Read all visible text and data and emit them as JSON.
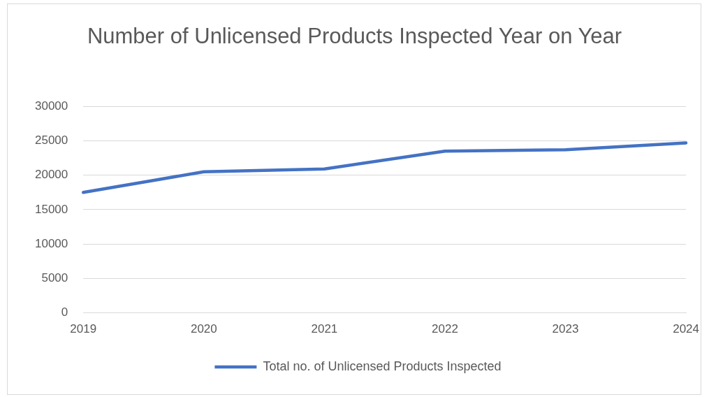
{
  "chart_data": {
    "type": "line",
    "title": "Number of Unlicensed Products Inspected Year on Year",
    "categories": [
      "2019",
      "2020",
      "2021",
      "2022",
      "2023",
      "2024"
    ],
    "series": [
      {
        "name": "Total no. of Unlicensed Products Inspected",
        "color": "#4472c4",
        "values": [
          17500,
          20500,
          20900,
          23500,
          23700,
          24700
        ]
      }
    ],
    "ylim": [
      0,
      30000
    ],
    "yticks": [
      0,
      5000,
      10000,
      15000,
      20000,
      25000,
      30000
    ],
    "grid": "y",
    "legend": "bottom",
    "marker": "none",
    "line_style": "solid"
  }
}
